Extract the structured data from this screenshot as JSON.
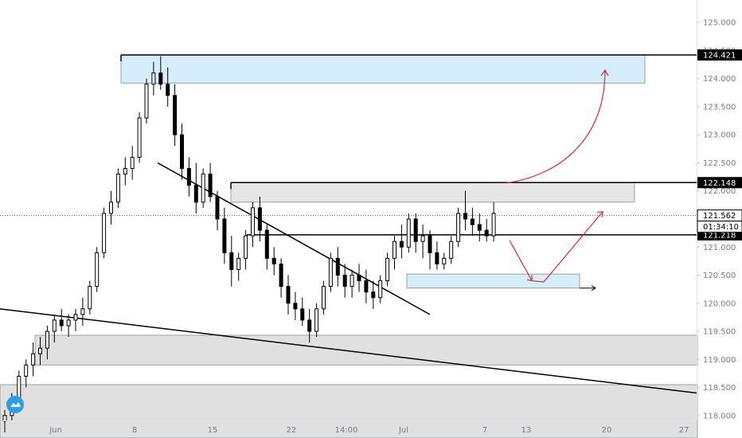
{
  "chart_data": {
    "type": "candlestick",
    "title": "",
    "xlabel": "",
    "ylabel": "",
    "ylim": [
      117.6,
      125.4
    ],
    "x_ticks": [
      "Jun",
      "8",
      "15",
      "22",
      "14:00",
      "Jul",
      "7",
      "13",
      "20",
      "27"
    ],
    "y_ticks": [
      "118.000",
      "118.500",
      "119.000",
      "119.500",
      "120.000",
      "120.500",
      "121.000",
      "121.500",
      "122.000",
      "122.500",
      "123.000",
      "123.500",
      "124.000",
      "124.500",
      "125.000"
    ],
    "grid": false,
    "series": [
      {
        "values": [
          [
            117.9,
            118.1,
            117.7,
            118.0
          ],
          [
            118.0,
            118.4,
            117.9,
            118.3
          ],
          [
            118.3,
            118.8,
            118.2,
            118.7
          ],
          [
            118.7,
            119.0,
            118.5,
            118.9
          ],
          [
            118.9,
            119.3,
            118.7,
            119.1
          ],
          [
            119.1,
            119.4,
            118.9,
            119.2
          ],
          [
            119.2,
            119.6,
            119.0,
            119.5
          ],
          [
            119.5,
            119.8,
            119.3,
            119.7
          ],
          [
            119.7,
            119.9,
            119.5,
            119.6
          ],
          [
            119.6,
            119.8,
            119.4,
            119.7
          ],
          [
            119.7,
            119.9,
            119.5,
            119.8
          ],
          [
            119.8,
            120.1,
            119.6,
            119.9
          ],
          [
            119.9,
            120.4,
            119.8,
            120.3
          ],
          [
            120.3,
            121.0,
            120.2,
            120.9
          ],
          [
            120.9,
            121.7,
            120.8,
            121.6
          ],
          [
            121.6,
            122.0,
            121.4,
            121.8
          ],
          [
            121.8,
            122.4,
            121.7,
            122.3
          ],
          [
            122.3,
            122.6,
            122.1,
            122.4
          ],
          [
            122.4,
            122.8,
            122.2,
            122.6
          ],
          [
            122.6,
            123.4,
            122.5,
            123.3
          ],
          [
            123.3,
            124.0,
            123.2,
            123.9
          ],
          [
            123.9,
            124.3,
            123.7,
            124.1
          ],
          [
            124.1,
            124.4,
            123.8,
            123.9
          ],
          [
            123.9,
            124.2,
            123.5,
            123.7
          ],
          [
            123.7,
            123.9,
            122.8,
            123.0
          ],
          [
            123.0,
            123.2,
            122.2,
            122.4
          ],
          [
            122.4,
            122.6,
            121.9,
            122.1
          ],
          [
            122.1,
            122.5,
            121.6,
            121.8
          ],
          [
            121.8,
            122.4,
            121.7,
            122.3
          ],
          [
            122.3,
            122.5,
            121.8,
            121.9
          ],
          [
            121.9,
            122.0,
            121.3,
            121.5
          ],
          [
            121.5,
            121.7,
            120.7,
            120.9
          ],
          [
            120.9,
            121.2,
            120.3,
            120.6
          ],
          [
            120.6,
            120.9,
            120.4,
            120.8
          ],
          [
            120.8,
            121.3,
            120.6,
            121.2
          ],
          [
            121.2,
            121.8,
            121.0,
            121.7
          ],
          [
            121.7,
            121.9,
            121.1,
            121.3
          ],
          [
            121.3,
            121.4,
            120.6,
            120.8
          ],
          [
            120.8,
            121.0,
            120.5,
            120.7
          ],
          [
            120.7,
            120.8,
            120.1,
            120.3
          ],
          [
            120.3,
            120.5,
            119.8,
            120.0
          ],
          [
            120.0,
            120.2,
            119.7,
            119.9
          ],
          [
            119.9,
            120.1,
            119.6,
            119.7
          ],
          [
            119.7,
            119.9,
            119.3,
            119.5
          ],
          [
            119.5,
            120.0,
            119.4,
            119.9
          ],
          [
            119.9,
            120.4,
            119.8,
            120.3
          ],
          [
            120.3,
            120.9,
            120.2,
            120.8
          ],
          [
            120.8,
            121.0,
            120.3,
            120.5
          ],
          [
            120.5,
            120.7,
            120.1,
            120.3
          ],
          [
            120.3,
            120.6,
            120.1,
            120.5
          ],
          [
            120.5,
            120.7,
            120.2,
            120.4
          ],
          [
            120.4,
            120.6,
            120.0,
            120.2
          ],
          [
            120.2,
            120.4,
            119.9,
            120.1
          ],
          [
            120.1,
            120.5,
            120.0,
            120.4
          ],
          [
            120.4,
            120.9,
            120.3,
            120.8
          ],
          [
            120.8,
            121.2,
            120.6,
            121.1
          ],
          [
            121.1,
            121.4,
            120.8,
            121.0
          ],
          [
            121.0,
            121.6,
            120.9,
            121.5
          ],
          [
            121.5,
            121.6,
            120.9,
            121.1
          ],
          [
            121.1,
            121.4,
            120.8,
            121.2
          ],
          [
            121.2,
            121.3,
            120.6,
            120.9
          ],
          [
            120.9,
            121.1,
            120.6,
            120.7
          ],
          [
            120.7,
            120.9,
            120.6,
            120.8
          ],
          [
            120.8,
            121.2,
            120.7,
            121.1
          ],
          [
            121.1,
            121.7,
            121.0,
            121.6
          ],
          [
            121.6,
            122.0,
            121.3,
            121.5
          ],
          [
            121.5,
            121.7,
            121.2,
            121.4
          ],
          [
            121.4,
            121.6,
            121.1,
            121.3
          ],
          [
            121.3,
            121.5,
            121.1,
            121.2
          ],
          [
            121.2,
            121.8,
            121.1,
            121.6
          ]
        ]
      }
    ],
    "zones": [
      {
        "kind": "supply",
        "color": "#d6eefb",
        "top": 124.421,
        "bottom": 123.92
      },
      {
        "kind": "range",
        "color": "#e6e6e6",
        "top": 122.148,
        "bottom": 121.8
      },
      {
        "kind": "demand",
        "color": "#d6eefb",
        "top": 120.52,
        "bottom": 120.27
      },
      {
        "kind": "support",
        "color": "#e0e0e0",
        "top": 119.43,
        "bottom": 118.9
      },
      {
        "kind": "support",
        "color": "#e0e0e0",
        "top": 118.55,
        "bottom": 117.6
      }
    ],
    "levels": [
      {
        "value": 124.421,
        "label": "124.421"
      },
      {
        "value": 122.148,
        "label": "122.148"
      },
      {
        "value": 121.218,
        "label": "121.218"
      }
    ],
    "last_price": {
      "value": 121.562,
      "label": "121.562",
      "countdown": "01:34:10"
    },
    "trendlines": [
      {
        "from": [
          8,
          122.5
        ],
        "to": [
          25,
          119.8
        ]
      },
      {
        "from": [
          0,
          119.9
        ],
        "to": [
          39,
          118.4
        ]
      }
    ],
    "colors": {
      "up": "#000000",
      "down": "#000000",
      "projection": "#d32f2f",
      "level": "#000000"
    }
  },
  "logo": {
    "icon": "tradingview-cloud-icon"
  }
}
